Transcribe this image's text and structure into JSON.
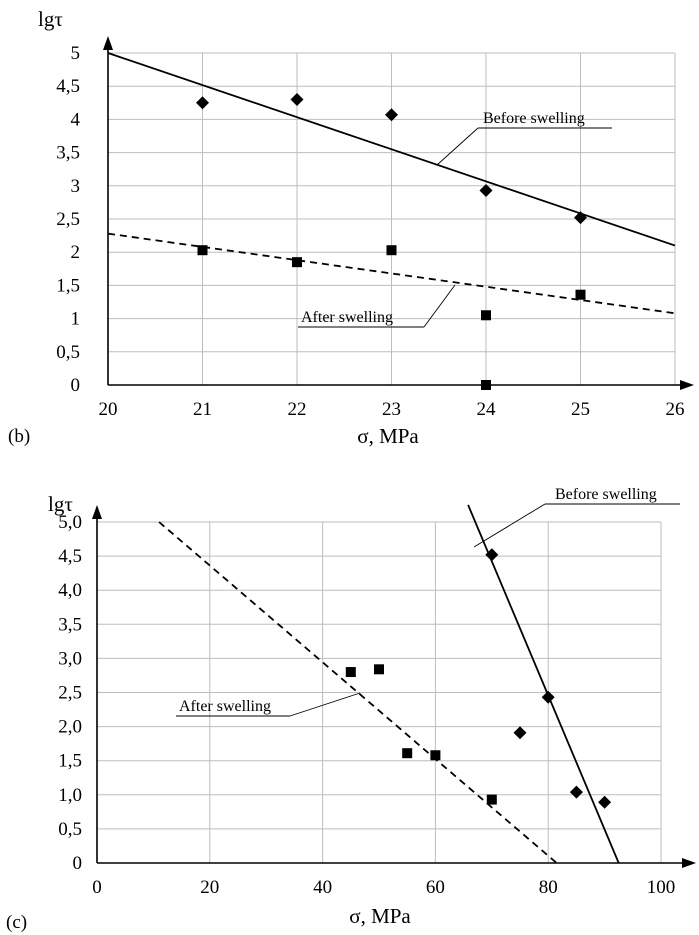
{
  "chart_data": [
    {
      "panel_label": "(b)",
      "type": "scatter",
      "ylabel": "lgτ",
      "xlabel": "σ, MPa",
      "xlim": [
        20,
        26
      ],
      "ylim": [
        0,
        5
      ],
      "x_ticks": [
        "20",
        "21",
        "22",
        "23",
        "24",
        "25",
        "26"
      ],
      "y_ticks": [
        "0",
        "0,5",
        "1",
        "1,5",
        "2",
        "2,5",
        "3",
        "3,5",
        "4",
        "4,5",
        "5"
      ],
      "grid": true,
      "series": [
        {
          "name": "Before swelling",
          "marker": "diamond",
          "points": [
            [
              21,
              4.25
            ],
            [
              22,
              4.3
            ],
            [
              23,
              4.07
            ],
            [
              24,
              2.93
            ],
            [
              25,
              2.52
            ]
          ],
          "trend": {
            "style": "solid",
            "from": [
              20,
              5.0
            ],
            "to": [
              26,
              2.1
            ]
          }
        },
        {
          "name": "After swelling",
          "marker": "square",
          "points": [
            [
              21,
              2.03
            ],
            [
              22,
              1.85
            ],
            [
              23,
              2.03
            ],
            [
              24,
              1.05
            ],
            [
              24,
              0.0
            ],
            [
              25,
              1.36
            ]
          ],
          "trend": {
            "style": "dashed",
            "from": [
              20,
              2.28
            ],
            "to": [
              26,
              1.08
            ]
          }
        }
      ]
    },
    {
      "panel_label": "(c)",
      "type": "scatter",
      "ylabel": "lgτ",
      "xlabel": "σ, MPa",
      "xlim": [
        0,
        100
      ],
      "ylim": [
        0,
        5
      ],
      "x_ticks": [
        "0",
        "20",
        "40",
        "60",
        "80",
        "100"
      ],
      "y_ticks": [
        "0",
        "0,5",
        "1,0",
        "1,5",
        "2,0",
        "2,5",
        "3,0",
        "3,5",
        "4,0",
        "4,5",
        "5,0"
      ],
      "grid": true,
      "series": [
        {
          "name": "Before swelling",
          "marker": "diamond",
          "points": [
            [
              70,
              4.52
            ],
            [
              80,
              2.43
            ],
            [
              75,
              1.91
            ],
            [
              85,
              1.04
            ],
            [
              90,
              0.89
            ]
          ],
          "trend": {
            "style": "solid",
            "from": [
              65.8,
              5.25
            ],
            "to": [
              92.5,
              0.0
            ]
          }
        },
        {
          "name": "After swelling",
          "marker": "square",
          "points": [
            [
              45,
              2.8
            ],
            [
              50,
              2.84
            ],
            [
              55,
              1.61
            ],
            [
              60,
              1.58
            ],
            [
              70,
              0.93
            ]
          ],
          "trend": {
            "style": "dashed",
            "from": [
              11,
              5.0
            ],
            "to": [
              81.5,
              0.0
            ]
          }
        }
      ]
    }
  ]
}
